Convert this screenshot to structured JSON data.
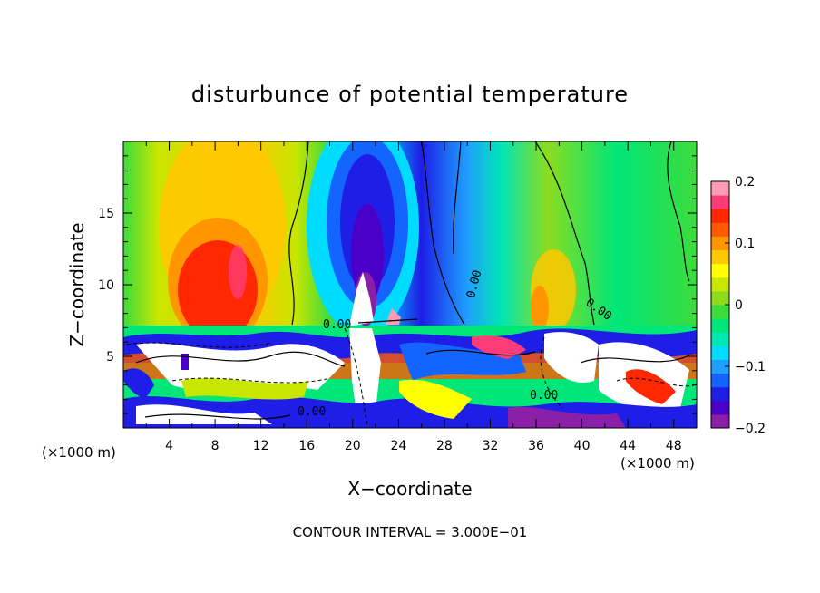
{
  "chart_data": {
    "type": "heatmap",
    "title": "disturbunce of potential temperature",
    "xlabel": "X−coordinate",
    "ylabel": "Z−coordinate",
    "x_unit_left": "(×1000 m)",
    "x_unit_right": "(×1000 m)",
    "xlim": [
      0,
      50
    ],
    "ylim": [
      0,
      20
    ],
    "x_ticks": [
      4,
      8,
      12,
      16,
      20,
      24,
      28,
      32,
      36,
      40,
      44,
      48
    ],
    "x_tick_labels": [
      "4",
      "8",
      "12",
      "16",
      "20",
      "24",
      "28",
      "32",
      "36",
      "40",
      "44",
      "48"
    ],
    "y_ticks": [
      5,
      10,
      15
    ],
    "y_tick_labels": [
      "5",
      "10",
      "15"
    ],
    "colorbar": {
      "range": [
        -0.2,
        0.2
      ],
      "ticks": [
        0.2,
        0.1,
        0,
        -0.1,
        -0.2
      ],
      "tick_labels": [
        "0.2",
        "0.1",
        "0",
        "−0.1",
        "−0.2"
      ],
      "colors": [
        "#8b1fa8",
        "#4b00c8",
        "#1e1ee6",
        "#1464ff",
        "#1ea0ff",
        "#00dcff",
        "#00e6b4",
        "#00e678",
        "#3cdc3c",
        "#8cdc1e",
        "#c8e600",
        "#ffff00",
        "#ffc800",
        "#ff9600",
        "#ff5a00",
        "#ff2800",
        "#ff3c78",
        "#ff9bb4"
      ]
    },
    "contour_labels": [
      "0.00",
      "0.00",
      "0.00",
      "0.00",
      "0.00"
    ],
    "annotation": "CONTOUR INTERVAL = 3.000E−01"
  }
}
